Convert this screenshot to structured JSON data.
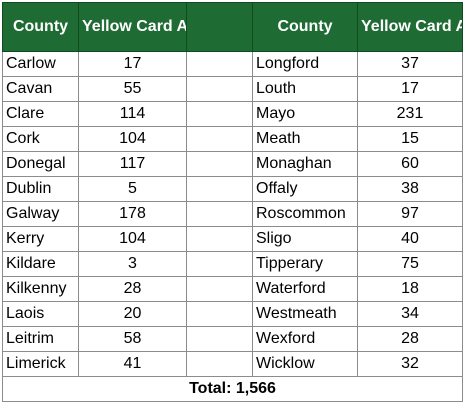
{
  "headers": {
    "county_left": "County",
    "cases_left": "Yellow Card ANC cases",
    "county_right": "County",
    "cases_right": "Yellow Card ANC cases"
  },
  "colors": {
    "header_background": "#1e6b33",
    "header_text": "#ffffff"
  },
  "rows": [
    {
      "left_county": "Carlow",
      "left_cases": "17",
      "right_county": "Longford",
      "right_cases": "37"
    },
    {
      "left_county": "Cavan",
      "left_cases": "55",
      "right_county": "Louth",
      "right_cases": "17"
    },
    {
      "left_county": "Clare",
      "left_cases": "114",
      "right_county": "Mayo",
      "right_cases": "231"
    },
    {
      "left_county": "Cork",
      "left_cases": "104",
      "right_county": "Meath",
      "right_cases": "15"
    },
    {
      "left_county": "Donegal",
      "left_cases": "117",
      "right_county": "Monaghan",
      "right_cases": "60"
    },
    {
      "left_county": "Dublin",
      "left_cases": "5",
      "right_county": "Offaly",
      "right_cases": "38"
    },
    {
      "left_county": "Galway",
      "left_cases": "178",
      "right_county": "Roscommon",
      "right_cases": "97"
    },
    {
      "left_county": "Kerry",
      "left_cases": "104",
      "right_county": "Sligo",
      "right_cases": "40"
    },
    {
      "left_county": "Kildare",
      "left_cases": "3",
      "right_county": "Tipperary",
      "right_cases": "75"
    },
    {
      "left_county": "Kilkenny",
      "left_cases": "28",
      "right_county": "Waterford",
      "right_cases": "18"
    },
    {
      "left_county": "Laois",
      "left_cases": "20",
      "right_county": "Westmeath",
      "right_cases": "34"
    },
    {
      "left_county": "Leitrim",
      "left_cases": "58",
      "right_county": "Wexford",
      "right_cases": "28"
    },
    {
      "left_county": "Limerick",
      "left_cases": "41",
      "right_county": "Wicklow",
      "right_cases": "32"
    }
  ],
  "total": "Total: 1,566"
}
